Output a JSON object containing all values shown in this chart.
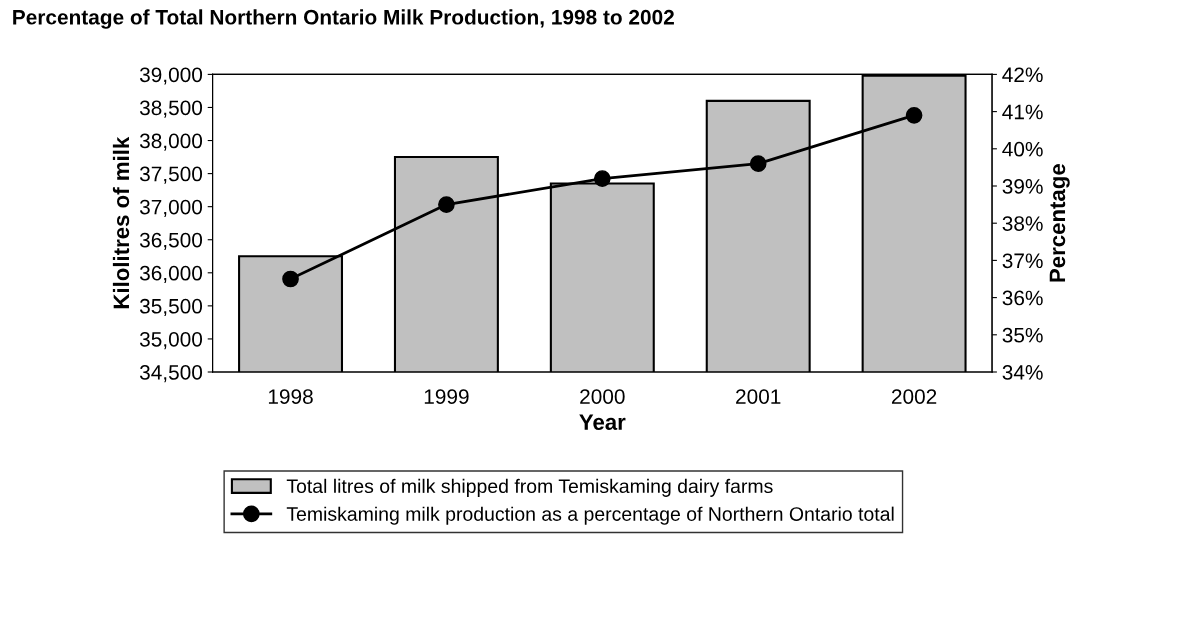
{
  "chart_data": {
    "type": "bar",
    "title": "Percentage of Total Northern Ontario Milk Production, 1998 to 2002",
    "xlabel": "Year",
    "ylabel": "Kilolitres of milk",
    "y2label": "Percentage",
    "categories": [
      "1998",
      "1999",
      "2000",
      "2001",
      "2002"
    ],
    "series": [
      {
        "name": "Total litres of milk shipped from Temiskaming dairy farms",
        "color": "#c0c0c0",
        "values": [
          36250,
          37750,
          37350,
          38600,
          38980
        ]
      },
      {
        "name": "Temiskaming milk production as a percentage of Northern Ontario total",
        "type": "line",
        "axis": "y2",
        "color": "#000000",
        "marker": "circle",
        "values": [
          36.5,
          38.5,
          39.2,
          39.6,
          40.9
        ]
      }
    ],
    "ylim": [
      34500,
      39000
    ],
    "yticks": [
      {
        "value": 34500,
        "label": "34,500"
      },
      {
        "value": 35000,
        "label": "35,000"
      },
      {
        "value": 35500,
        "label": "35,500"
      },
      {
        "value": 36000,
        "label": "36,000"
      },
      {
        "value": 36500,
        "label": "36,500"
      },
      {
        "value": 37000,
        "label": "37,000"
      },
      {
        "value": 37500,
        "label": "37,500"
      },
      {
        "value": 38000,
        "label": "38,000"
      },
      {
        "value": 38500,
        "label": "38,500"
      },
      {
        "value": 39000,
        "label": "39,000"
      }
    ],
    "y2lim": [
      34,
      42
    ],
    "y2ticks": [
      {
        "value": 34,
        "label": "34%"
      },
      {
        "value": 35,
        "label": "35%"
      },
      {
        "value": 36,
        "label": "36%"
      },
      {
        "value": 37,
        "label": "37%"
      },
      {
        "value": 38,
        "label": "38%"
      },
      {
        "value": 39,
        "label": "39%"
      },
      {
        "value": 40,
        "label": "40%"
      },
      {
        "value": 41,
        "label": "41%"
      },
      {
        "value": 42,
        "label": "42%"
      }
    ],
    "grid": false,
    "legend": "bottom"
  }
}
